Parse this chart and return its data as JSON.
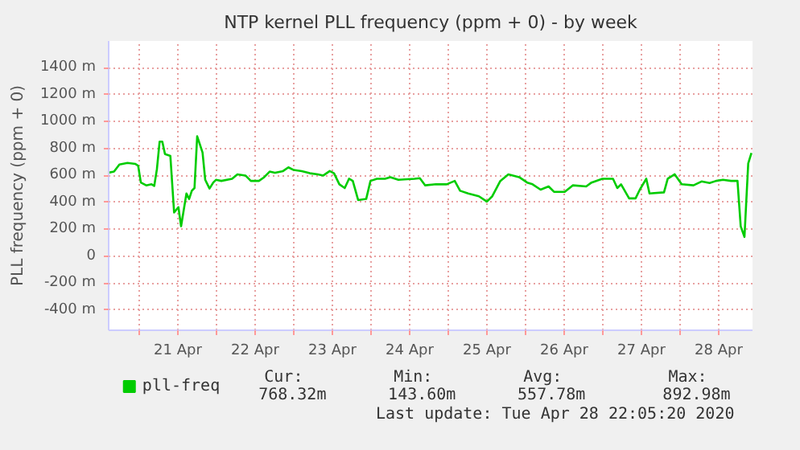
{
  "chart_data": {
    "type": "line",
    "title": "NTP kernel PLL frequency (ppm + 0) - by week",
    "ylabel": "PLL frequency (ppm + 0)",
    "x": [
      "2020-04-20T14:30",
      "2020-04-20T16:10",
      "2020-04-20T17:50",
      "2020-04-20T20:20",
      "2020-04-20T22:50",
      "2020-04-20T23:40",
      "2020-04-21T00:30",
      "2020-04-21T02:10",
      "2020-04-21T03:50",
      "2020-04-21T04:40",
      "2020-04-21T05:30",
      "2020-04-21T06:20",
      "2020-04-21T07:10",
      "2020-04-21T08:00",
      "2020-04-21T09:40",
      "2020-04-21T10:50",
      "2020-04-21T12:10",
      "2020-04-21T13:00",
      "2020-04-21T14:40",
      "2020-04-21T15:30",
      "2020-04-21T16:20",
      "2020-04-21T17:10",
      "2020-04-21T18:00",
      "2020-04-21T18:50",
      "2020-04-21T19:40",
      "2020-04-21T20:30",
      "2020-04-21T21:50",
      "2020-04-21T23:00",
      "2020-04-21T23:50",
      "2020-04-22T01:30",
      "2020-04-22T04:50",
      "2020-04-22T06:30",
      "2020-04-22T09:00",
      "2020-04-22T10:40",
      "2020-04-22T13:10",
      "2020-04-22T14:50",
      "2020-04-22T16:30",
      "2020-04-22T18:10",
      "2020-04-22T20:40",
      "2020-04-22T22:20",
      "2020-04-23T00:00",
      "2020-04-23T02:30",
      "2020-04-23T05:00",
      "2020-04-23T07:30",
      "2020-04-23T09:10",
      "2020-04-23T11:10",
      "2020-04-23T12:30",
      "2020-04-23T14:10",
      "2020-04-23T15:50",
      "2020-04-23T17:10",
      "2020-04-23T18:20",
      "2020-04-23T20:00",
      "2020-04-23T22:30",
      "2020-04-23T23:50",
      "2020-04-24T01:50",
      "2020-04-24T04:20",
      "2020-04-24T06:00",
      "2020-04-24T08:30",
      "2020-04-24T13:30",
      "2020-04-24T15:10",
      "2020-04-24T16:50",
      "2020-04-24T20:10",
      "2020-04-24T23:30",
      "2020-04-25T02:00",
      "2020-04-25T03:40",
      "2020-04-25T06:10",
      "2020-04-25T09:30",
      "2020-04-25T12:00",
      "2020-04-25T13:40",
      "2020-04-25T16:10",
      "2020-04-25T18:40",
      "2020-04-25T22:00",
      "2020-04-26T00:30",
      "2020-04-26T02:10",
      "2020-04-26T04:40",
      "2020-04-26T07:10",
      "2020-04-26T08:50",
      "2020-04-26T12:10",
      "2020-04-26T14:40",
      "2020-04-26T18:50",
      "2020-04-26T20:30",
      "2020-04-26T23:50",
      "2020-04-27T03:10",
      "2020-04-27T04:30",
      "2020-04-27T05:40",
      "2020-04-27T08:10",
      "2020-04-27T10:10",
      "2020-04-27T11:30",
      "2020-04-27T13:30",
      "2020-04-27T14:30",
      "2020-04-27T19:00",
      "2020-04-27T20:10",
      "2020-04-27T22:20",
      "2020-04-28T00:30",
      "2020-04-28T04:10",
      "2020-04-28T06:40",
      "2020-04-28T09:10",
      "2020-04-28T11:10",
      "2020-04-28T13:20",
      "2020-04-28T15:50",
      "2020-04-28T17:50",
      "2020-04-28T18:50",
      "2020-04-28T20:00",
      "2020-04-28T21:10",
      "2020-04-28T22:10"
    ],
    "series": [
      {
        "name": "pll-freq",
        "color": "#00cc00",
        "values": [
          621,
          629,
          682,
          694,
          686,
          673,
          548,
          527,
          535,
          523,
          649,
          852,
          852,
          759,
          746,
          325,
          365,
          223,
          467,
          426,
          487,
          507,
          892,
          832,
          771,
          568,
          503,
          548,
          568,
          560,
          576,
          609,
          600,
          560,
          560,
          588,
          629,
          621,
          633,
          661,
          641,
          633,
          617,
          609,
          600,
          633,
          617,
          535,
          507,
          576,
          560,
          418,
          426,
          560,
          576,
          576,
          588,
          568,
          576,
          580,
          527,
          535,
          535,
          560,
          487,
          467,
          446,
          406,
          446,
          560,
          609,
          588,
          548,
          535,
          495,
          519,
          479,
          479,
          527,
          519,
          548,
          576,
          576,
          507,
          535,
          430,
          430,
          495,
          576,
          467,
          475,
          576,
          609,
          535,
          527,
          556,
          544,
          560,
          568,
          560,
          560,
          223,
          144,
          690,
          768
        ]
      }
    ],
    "xlim": [
      "2020-04-20T14:30",
      "2020-04-28T22:30"
    ],
    "xticks": [
      {
        "value": "2020-04-21T00:00",
        "label": null
      },
      {
        "value": "2020-04-21T12:00",
        "label": "21 Apr"
      },
      {
        "value": "2020-04-22T00:00",
        "label": null
      },
      {
        "value": "2020-04-22T12:00",
        "label": "22 Apr"
      },
      {
        "value": "2020-04-23T00:00",
        "label": null
      },
      {
        "value": "2020-04-23T12:00",
        "label": "23 Apr"
      },
      {
        "value": "2020-04-24T00:00",
        "label": null
      },
      {
        "value": "2020-04-24T12:00",
        "label": "24 Apr"
      },
      {
        "value": "2020-04-25T00:00",
        "label": null
      },
      {
        "value": "2020-04-25T12:00",
        "label": "25 Apr"
      },
      {
        "value": "2020-04-26T00:00",
        "label": null
      },
      {
        "value": "2020-04-26T12:00",
        "label": "26 Apr"
      },
      {
        "value": "2020-04-27T00:00",
        "label": null
      },
      {
        "value": "2020-04-27T12:00",
        "label": "27 Apr"
      },
      {
        "value": "2020-04-28T00:00",
        "label": null
      },
      {
        "value": "2020-04-28T12:00",
        "label": "28 Apr"
      }
    ],
    "ylim": [
      -550,
      1600
    ],
    "yticks": [
      {
        "value": -400,
        "label": "-400 m"
      },
      {
        "value": -200,
        "label": "-200 m"
      },
      0,
      {
        "value": 200,
        "label": "200 m"
      },
      {
        "value": 400,
        "label": "400 m"
      },
      {
        "value": 600,
        "label": "600 m"
      },
      {
        "value": 800,
        "label": "800 m"
      },
      {
        "value": 1000,
        "label": "1000 m"
      },
      {
        "value": 1200,
        "label": "1200 m"
      },
      {
        "value": 1400,
        "label": "1400 m"
      }
    ],
    "grid": true,
    "legend": "bottom",
    "annotations": [
      "Cur:",
      "768.32m",
      "Min:",
      "143.60m",
      "Avg:",
      "557.78m",
      "Max:",
      "892.98m",
      "Last update: Tue Apr 28 22:05:20 2020"
    ]
  }
}
